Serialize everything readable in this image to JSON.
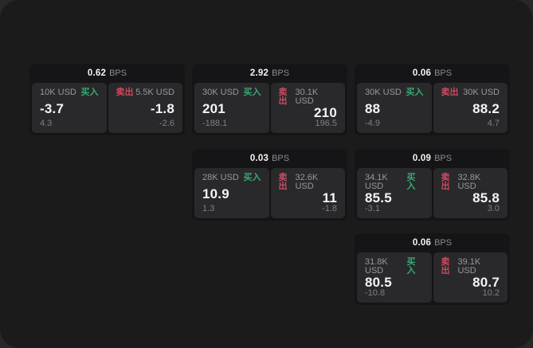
{
  "labels": {
    "buy": "买入",
    "sell": "卖出",
    "bps_unit": "BPS"
  },
  "colors": {
    "buy_green": "#3aa873",
    "sell_red": "#ce4a62",
    "page_bg": "#1b1b1c",
    "card_bg": "#151517",
    "panel_bg": "#29292b"
  },
  "cards": [
    {
      "bps": "0.62",
      "col": 0,
      "row": 0,
      "buy": {
        "notional": "10K USD",
        "price": "-3.7",
        "change": "4.3"
      },
      "sell": {
        "notional": "5.5K USD",
        "price": "-1.8",
        "change": "-2.6"
      }
    },
    {
      "bps": "2.92",
      "col": 1,
      "row": 0,
      "buy": {
        "notional": "30K USD",
        "price": "201",
        "change": "-188.1"
      },
      "sell": {
        "notional": "30.1K USD",
        "price": "210",
        "change": "196.5"
      }
    },
    {
      "bps": "0.06",
      "col": 2,
      "row": 0,
      "buy": {
        "notional": "30K USD",
        "price": "88",
        "change": "-4.9"
      },
      "sell": {
        "notional": "30K USD",
        "price": "88.2",
        "change": "4.7"
      }
    },
    {
      "bps": "0.03",
      "col": 1,
      "row": 1,
      "buy": {
        "notional": "28K USD",
        "price": "10.9",
        "change": "1.3"
      },
      "sell": {
        "notional": "32.6K USD",
        "price": "11",
        "change": "-1.8"
      }
    },
    {
      "bps": "0.09",
      "col": 2,
      "row": 1,
      "buy": {
        "notional": "34.1K USD",
        "price": "85.5",
        "change": "-3.1"
      },
      "sell": {
        "notional": "32.8K USD",
        "price": "85.8",
        "change": "3.0"
      }
    },
    {
      "bps": "0.06",
      "col": 2,
      "row": 2,
      "buy": {
        "notional": "31.8K USD",
        "price": "80.5",
        "change": "-10.8"
      },
      "sell": {
        "notional": "39.1K USD",
        "price": "80.7",
        "change": "10.2"
      }
    }
  ],
  "layout_cols_x": [
    37,
    241,
    445
  ],
  "layout_rows_y": [
    80,
    187,
    293
  ]
}
